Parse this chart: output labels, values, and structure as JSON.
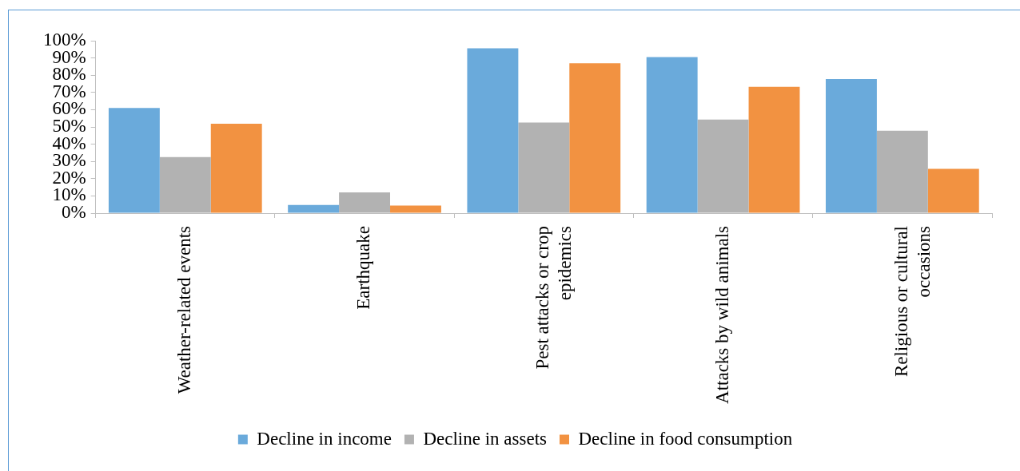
{
  "chart_data": {
    "type": "bar",
    "categories": [
      "Weather-related events",
      "Earthquake",
      "Pest attacks or crop epidemics",
      "Attacks by wild animals",
      "Religious or cultural occasions"
    ],
    "series": [
      {
        "name": "Decline in income",
        "color": "#6aaadb",
        "values": [
          61,
          4.7,
          95.6,
          90.5,
          77.8
        ]
      },
      {
        "name": "Decline in assets",
        "color": "#b2b2b2",
        "values": [
          32.5,
          12,
          52.6,
          54.3,
          47.8
        ]
      },
      {
        "name": "Decline in food consumption",
        "color": "#f29241",
        "values": [
          51.8,
          4.4,
          86.9,
          73.3,
          25.7
        ]
      }
    ],
    "ylim": [
      0,
      100
    ],
    "yticks": [
      {
        "value": 0,
        "label": "0%"
      },
      {
        "value": 10,
        "label": "10%"
      },
      {
        "value": 20,
        "label": "20%"
      },
      {
        "value": 30,
        "label": "30%"
      },
      {
        "value": 40,
        "label": "40%"
      },
      {
        "value": 50,
        "label": "50%"
      },
      {
        "value": 60,
        "label": "60%"
      },
      {
        "value": 70,
        "label": "70%"
      },
      {
        "value": 80,
        "label": "80%"
      },
      {
        "value": 90,
        "label": "90%"
      },
      {
        "value": 100,
        "label": "100%"
      }
    ],
    "grid": false,
    "legend": "bottom"
  }
}
